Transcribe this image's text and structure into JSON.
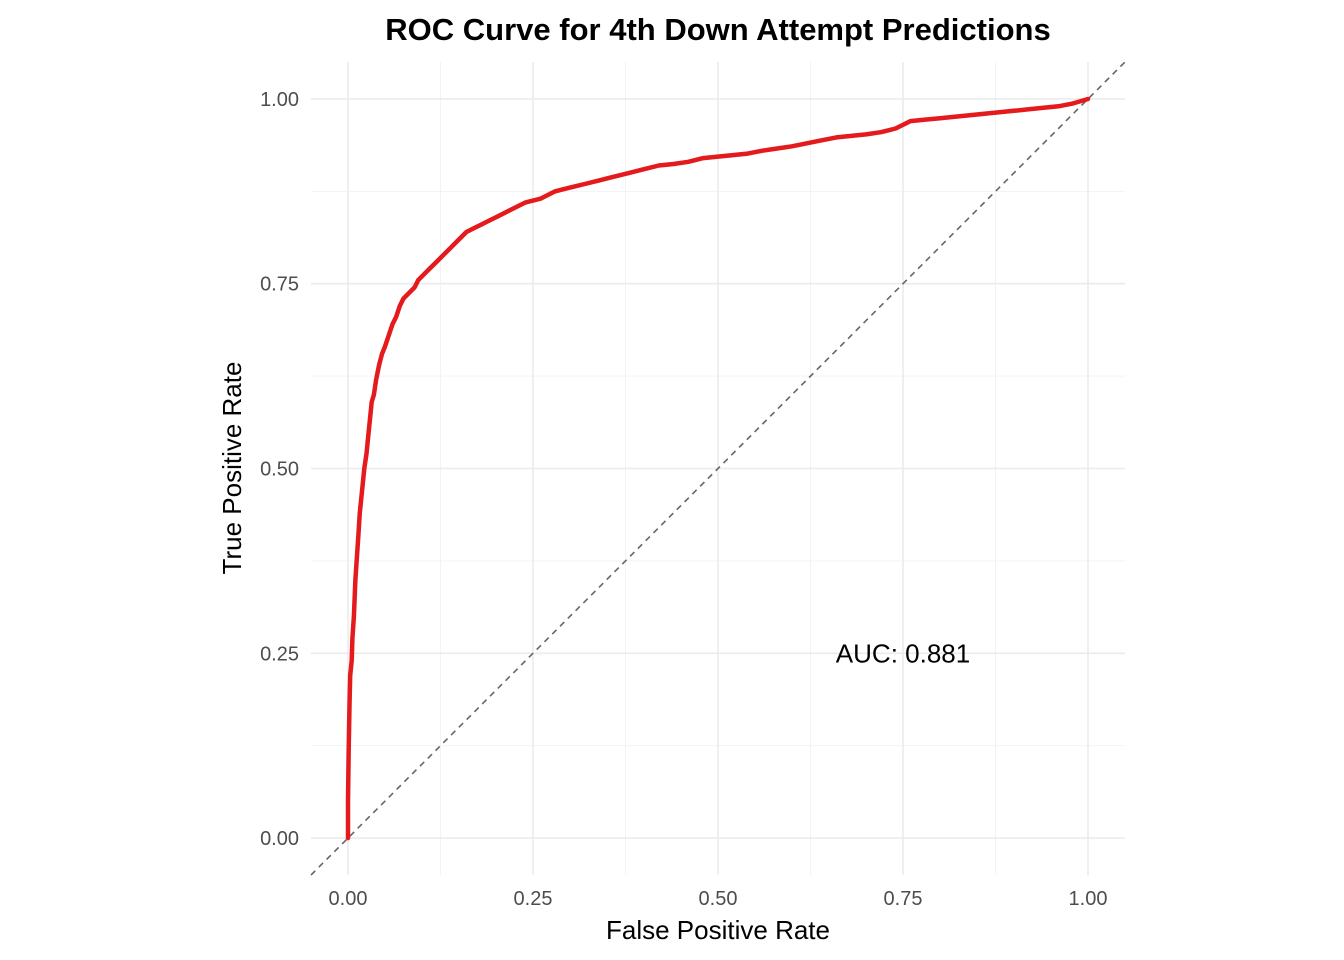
{
  "chart_data": {
    "type": "line",
    "title": "ROC Curve for 4th Down Attempt Predictions",
    "xlabel": "False Positive Rate",
    "ylabel": "True Positive Rate",
    "xlim": [
      -0.05,
      1.05
    ],
    "ylim": [
      -0.05,
      1.05
    ],
    "x_ticks": [
      0.0,
      0.25,
      0.5,
      0.75,
      1.0
    ],
    "x_tick_labels": [
      "0.00",
      "0.25",
      "0.50",
      "0.75",
      "1.00"
    ],
    "y_ticks": [
      0.0,
      0.25,
      0.5,
      0.75,
      1.0
    ],
    "y_tick_labels": [
      "0.00",
      "0.25",
      "0.50",
      "0.75",
      "1.00"
    ],
    "grid": true,
    "legend": "none",
    "annotation": {
      "text": "AUC: 0.881",
      "x": 0.75,
      "y": 0.25
    },
    "reference_line": {
      "style": "dashed",
      "color": "#666666",
      "slope": 1,
      "intercept": 0
    },
    "series": [
      {
        "color": "#e41a1c",
        "x": [
          0.0,
          0.0,
          0.001,
          0.002,
          0.003,
          0.005,
          0.006,
          0.008,
          0.01,
          0.012,
          0.014,
          0.016,
          0.018,
          0.02,
          0.022,
          0.025,
          0.028,
          0.03,
          0.032,
          0.035,
          0.038,
          0.042,
          0.046,
          0.05,
          0.055,
          0.06,
          0.065,
          0.07,
          0.075,
          0.08,
          0.085,
          0.09,
          0.095,
          0.1,
          0.11,
          0.12,
          0.13,
          0.14,
          0.15,
          0.16,
          0.17,
          0.18,
          0.19,
          0.2,
          0.22,
          0.24,
          0.26,
          0.28,
          0.3,
          0.32,
          0.34,
          0.36,
          0.38,
          0.4,
          0.42,
          0.44,
          0.46,
          0.48,
          0.5,
          0.52,
          0.54,
          0.56,
          0.58,
          0.6,
          0.62,
          0.64,
          0.66,
          0.68,
          0.7,
          0.72,
          0.74,
          0.76,
          0.78,
          0.8,
          0.82,
          0.84,
          0.86,
          0.88,
          0.9,
          0.92,
          0.94,
          0.96,
          0.98,
          1.0
        ],
        "y": [
          0.0,
          0.05,
          0.12,
          0.18,
          0.22,
          0.24,
          0.27,
          0.3,
          0.35,
          0.38,
          0.41,
          0.44,
          0.46,
          0.48,
          0.5,
          0.52,
          0.55,
          0.57,
          0.59,
          0.6,
          0.62,
          0.64,
          0.655,
          0.665,
          0.68,
          0.695,
          0.705,
          0.72,
          0.73,
          0.735,
          0.74,
          0.745,
          0.755,
          0.76,
          0.77,
          0.78,
          0.79,
          0.8,
          0.81,
          0.82,
          0.825,
          0.83,
          0.835,
          0.84,
          0.85,
          0.86,
          0.865,
          0.875,
          0.88,
          0.885,
          0.89,
          0.895,
          0.9,
          0.905,
          0.91,
          0.912,
          0.915,
          0.92,
          0.922,
          0.924,
          0.926,
          0.93,
          0.933,
          0.936,
          0.94,
          0.944,
          0.948,
          0.95,
          0.952,
          0.955,
          0.96,
          0.97,
          0.972,
          0.974,
          0.976,
          0.978,
          0.98,
          0.982,
          0.984,
          0.986,
          0.988,
          0.99,
          0.994,
          1.0
        ]
      }
    ]
  }
}
